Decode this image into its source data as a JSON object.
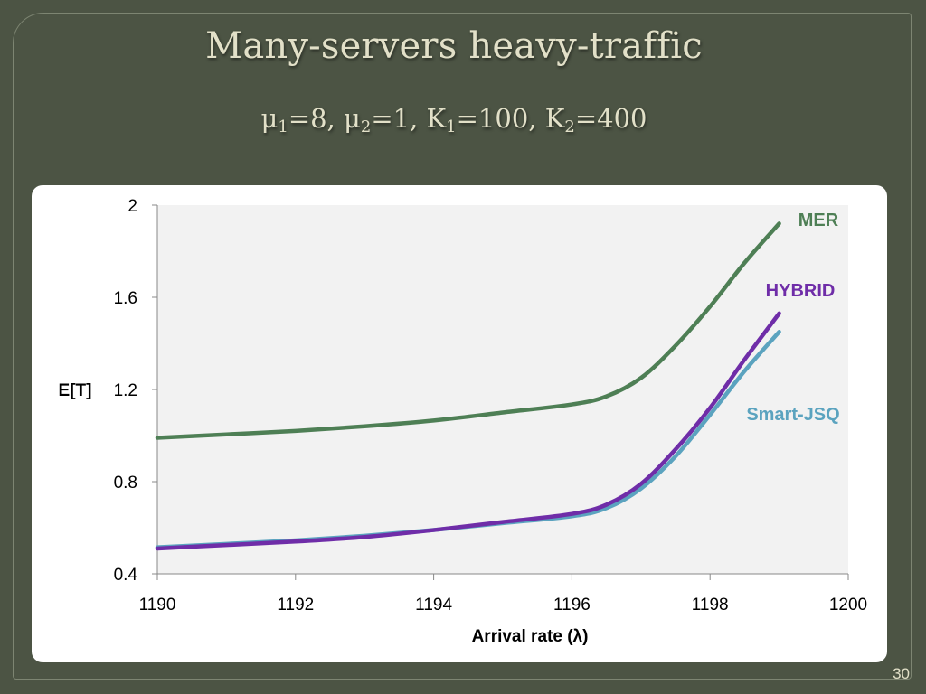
{
  "slide": {
    "title": "Many-servers heavy-traffic",
    "subtitle_parts": [
      {
        "t": "μ"
      },
      {
        "t": "1",
        "sub": true
      },
      {
        "t": "=8, μ"
      },
      {
        "t": "2",
        "sub": true
      },
      {
        "t": "=1, K"
      },
      {
        "t": "1",
        "sub": true
      },
      {
        "t": "=100, K"
      },
      {
        "t": "2",
        "sub": true
      },
      {
        "t": "=400"
      }
    ],
    "page_number": "30",
    "colors": {
      "background": "#4c5444",
      "title": "#e2e0c8"
    }
  },
  "chart_data": {
    "type": "line",
    "title": "",
    "xlabel": "Arrival rate (λ)",
    "ylabel": "E[T]",
    "xlim": [
      1190,
      1200
    ],
    "ylim": [
      0.4,
      2
    ],
    "x_ticks": [
      1190,
      1192,
      1194,
      1196,
      1198,
      1200
    ],
    "y_ticks": [
      0.4,
      0.8,
      1.2,
      1.6,
      2
    ],
    "y_tick_labels": [
      "0.4",
      "0.8",
      "1.2",
      "1.6",
      "2"
    ],
    "grid": false,
    "plot_background": "#f2f2f2",
    "series": [
      {
        "name": "MER",
        "color": "#4e7f55",
        "x": [
          1190,
          1191,
          1192,
          1193,
          1194,
          1195,
          1196,
          1196.5,
          1197,
          1197.5,
          1198,
          1198.5,
          1199
        ],
        "y": [
          0.99,
          1.005,
          1.02,
          1.04,
          1.065,
          1.1,
          1.135,
          1.17,
          1.25,
          1.39,
          1.56,
          1.75,
          1.92
        ]
      },
      {
        "name": "HYBRID",
        "color": "#6f2da8",
        "x": [
          1190,
          1191,
          1192,
          1193,
          1194,
          1195,
          1196,
          1196.5,
          1197,
          1197.5,
          1198,
          1198.5,
          1199
        ],
        "y": [
          0.51,
          0.525,
          0.54,
          0.56,
          0.59,
          0.625,
          0.66,
          0.7,
          0.79,
          0.94,
          1.12,
          1.33,
          1.53
        ]
      },
      {
        "name": "Smart-JSQ",
        "color": "#5ba3bf",
        "x": [
          1190,
          1191,
          1192,
          1193,
          1194,
          1195,
          1196,
          1196.5,
          1197,
          1197.5,
          1198,
          1198.5,
          1199
        ],
        "y": [
          0.515,
          0.53,
          0.545,
          0.565,
          0.59,
          0.62,
          0.65,
          0.685,
          0.77,
          0.91,
          1.09,
          1.28,
          1.45
        ]
      }
    ]
  }
}
